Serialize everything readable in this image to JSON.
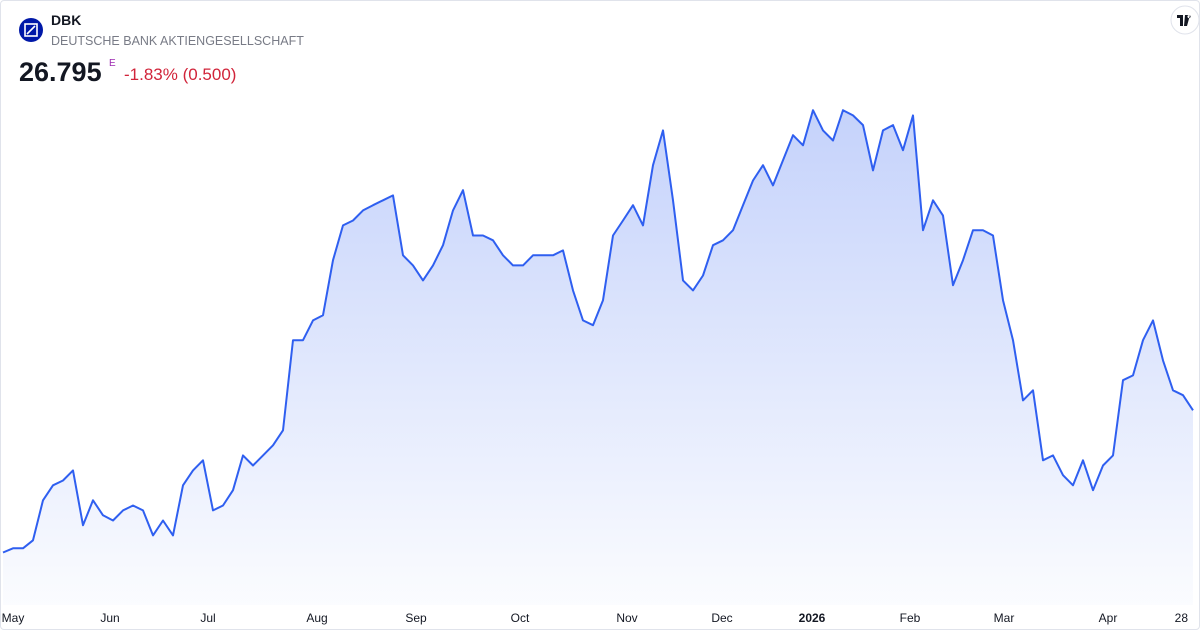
{
  "header": {
    "symbol": "DBK",
    "name": "DEUTSCHE BANK AKTIENGESELLSCHAFT",
    "price": "26.795",
    "price_flag": "E",
    "change": "-1.83% (0.500)"
  },
  "chart_data": {
    "type": "area",
    "color": "#2f5ff0",
    "values": [
      22.71,
      22.83,
      22.83,
      23.06,
      24.21,
      24.64,
      24.78,
      25.07,
      23.49,
      24.21,
      23.78,
      23.63,
      23.92,
      24.06,
      23.92,
      23.2,
      23.63,
      23.2,
      24.64,
      25.07,
      25.36,
      23.92,
      24.06,
      24.5,
      25.5,
      25.21,
      25.5,
      25.79,
      26.22,
      28.81,
      28.81,
      29.38,
      29.53,
      31.11,
      32.11,
      32.25,
      32.54,
      32.69,
      32.83,
      32.97,
      31.25,
      30.96,
      30.53,
      30.96,
      31.54,
      32.54,
      33.12,
      31.82,
      31.82,
      31.68,
      31.25,
      30.96,
      30.96,
      31.25,
      31.25,
      31.25,
      31.39,
      30.24,
      29.38,
      29.24,
      29.96,
      31.82,
      32.25,
      32.69,
      32.11,
      33.84,
      34.84,
      32.83,
      30.53,
      30.24,
      30.67,
      31.54,
      31.68,
      31.97,
      32.69,
      33.4,
      33.84,
      33.26,
      33.98,
      34.7,
      34.41,
      35.42,
      34.84,
      34.55,
      35.42,
      35.27,
      34.99,
      33.69,
      34.84,
      34.99,
      34.27,
      35.27,
      31.97,
      32.83,
      32.39,
      30.39,
      31.11,
      31.97,
      31.97,
      31.82,
      29.96,
      28.81,
      27.08,
      27.37,
      25.36,
      25.5,
      24.93,
      24.64,
      25.36,
      24.5,
      25.21,
      25.5,
      27.66,
      27.8,
      28.81,
      29.38,
      28.23,
      27.37,
      27.23,
      26.795
    ],
    "xlim": [
      0,
      119
    ],
    "xticks": [
      {
        "value": 1.0,
        "label": "May"
      },
      {
        "value": 10.7,
        "label": "Jun"
      },
      {
        "value": 20.5,
        "label": "Jul"
      },
      {
        "value": 31.4,
        "label": "Aug"
      },
      {
        "value": 41.3,
        "label": "Sep"
      },
      {
        "value": 51.7,
        "label": "Oct"
      },
      {
        "value": 62.4,
        "label": "Nov"
      },
      {
        "value": 71.9,
        "label": "Dec"
      },
      {
        "value": 80.9,
        "label": "2026"
      },
      {
        "value": 90.7,
        "label": "Feb"
      },
      {
        "value": 100.1,
        "label": "Mar"
      },
      {
        "value": 110.5,
        "label": "Apr"
      },
      {
        "value": 118.5,
        "label": "28"
      }
    ],
    "ylim": [
      21,
      36
    ]
  }
}
